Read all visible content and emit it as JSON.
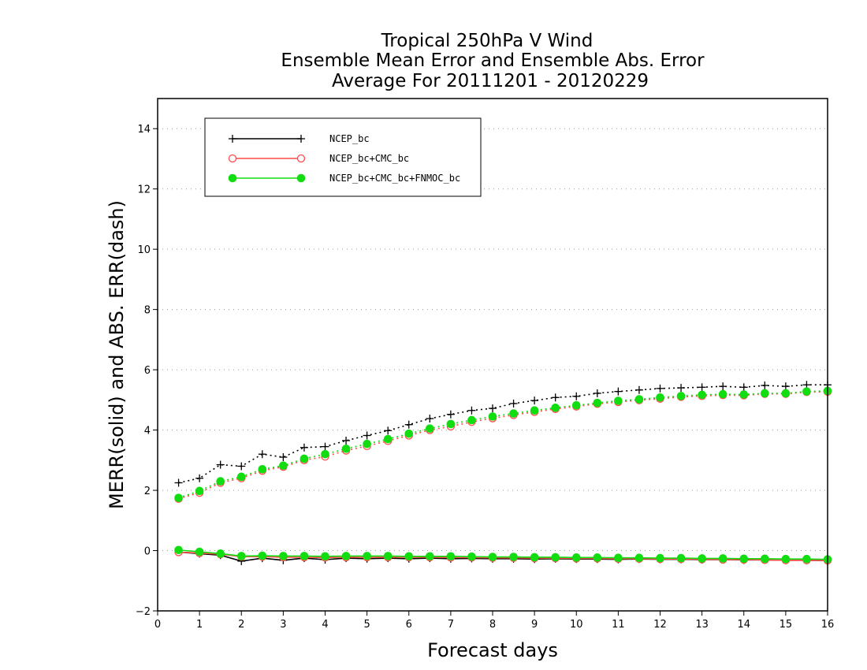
{
  "chart_data": {
    "type": "line",
    "title_lines": [
      "Tropical 250hPa V Wind",
      "Ensemble Mean Error and Ensemble Abs. Error",
      "Average For 20111201 - 20120229"
    ],
    "xlabel": "Forecast days",
    "ylabel": "MERR(solid) and ABS. ERR(dash)",
    "xlim": [
      0,
      16
    ],
    "ylim": [
      -2,
      15
    ],
    "x_ticks": [
      0,
      1,
      2,
      3,
      4,
      5,
      6,
      7,
      8,
      9,
      10,
      11,
      12,
      13,
      14,
      15,
      16
    ],
    "y_ticks": [
      -2,
      0,
      2,
      4,
      6,
      8,
      10,
      12,
      14
    ],
    "grid": "horizontal dotted at y ticks",
    "legend_position": "top-left",
    "x": [
      0.5,
      1,
      1.5,
      2,
      2.5,
      3,
      3.5,
      4,
      4.5,
      5,
      5.5,
      6,
      6.5,
      7,
      7.5,
      8,
      8.5,
      9,
      9.5,
      10,
      10.5,
      11,
      11.5,
      12,
      12.5,
      13,
      13.5,
      14,
      14.5,
      15,
      15.5,
      16
    ],
    "series": [
      {
        "name": "NCEP_bc",
        "color": "#000000",
        "marker": "plus",
        "merr": [
          -0.05,
          -0.1,
          -0.15,
          -0.35,
          -0.25,
          -0.32,
          -0.25,
          -0.3,
          -0.25,
          -0.27,
          -0.25,
          -0.27,
          -0.25,
          -0.27,
          -0.26,
          -0.27,
          -0.27,
          -0.28,
          -0.27,
          -0.28,
          -0.28,
          -0.29,
          -0.28,
          -0.29,
          -0.29,
          -0.3,
          -0.3,
          -0.31,
          -0.31,
          -0.32,
          -0.32,
          -0.33
        ],
        "abs_err": [
          2.25,
          2.4,
          2.85,
          2.8,
          3.2,
          3.1,
          3.42,
          3.45,
          3.65,
          3.82,
          3.98,
          4.18,
          4.38,
          4.52,
          4.65,
          4.72,
          4.88,
          4.98,
          5.08,
          5.12,
          5.22,
          5.28,
          5.33,
          5.38,
          5.4,
          5.42,
          5.45,
          5.42,
          5.48,
          5.45,
          5.5,
          5.5
        ]
      },
      {
        "name": "NCEP_bc+CMC_bc",
        "color": "#ff4a4a",
        "marker": "open-circle",
        "merr": [
          -0.05,
          -0.08,
          -0.12,
          -0.2,
          -0.2,
          -0.22,
          -0.22,
          -0.23,
          -0.22,
          -0.22,
          -0.22,
          -0.22,
          -0.22,
          -0.23,
          -0.23,
          -0.24,
          -0.24,
          -0.25,
          -0.25,
          -0.26,
          -0.26,
          -0.27,
          -0.27,
          -0.28,
          -0.28,
          -0.29,
          -0.3,
          -0.3,
          -0.31,
          -0.32,
          -0.32,
          -0.33
        ],
        "abs_err": [
          1.72,
          1.92,
          2.25,
          2.4,
          2.65,
          2.78,
          3.0,
          3.12,
          3.32,
          3.47,
          3.64,
          3.82,
          4.0,
          4.12,
          4.27,
          4.39,
          4.5,
          4.6,
          4.7,
          4.78,
          4.87,
          4.93,
          4.99,
          5.04,
          5.1,
          5.13,
          5.16,
          5.15,
          5.2,
          5.2,
          5.26,
          5.27
        ]
      },
      {
        "name": "NCEP_bc+CMC_bc+FNMOC_bc",
        "color": "#11dd11",
        "marker": "filled-circle",
        "merr": [
          0.02,
          -0.04,
          -0.1,
          -0.18,
          -0.17,
          -0.18,
          -0.18,
          -0.19,
          -0.18,
          -0.18,
          -0.18,
          -0.19,
          -0.19,
          -0.19,
          -0.2,
          -0.21,
          -0.21,
          -0.22,
          -0.22,
          -0.23,
          -0.23,
          -0.24,
          -0.24,
          -0.25,
          -0.25,
          -0.26,
          -0.26,
          -0.27,
          -0.27,
          -0.28,
          -0.28,
          -0.29
        ],
        "abs_err": [
          1.75,
          1.98,
          2.3,
          2.45,
          2.7,
          2.82,
          3.05,
          3.2,
          3.38,
          3.54,
          3.7,
          3.88,
          4.05,
          4.2,
          4.33,
          4.45,
          4.55,
          4.65,
          4.74,
          4.82,
          4.9,
          4.97,
          5.02,
          5.08,
          5.13,
          5.17,
          5.19,
          5.18,
          5.22,
          5.22,
          5.28,
          5.3
        ]
      }
    ]
  }
}
